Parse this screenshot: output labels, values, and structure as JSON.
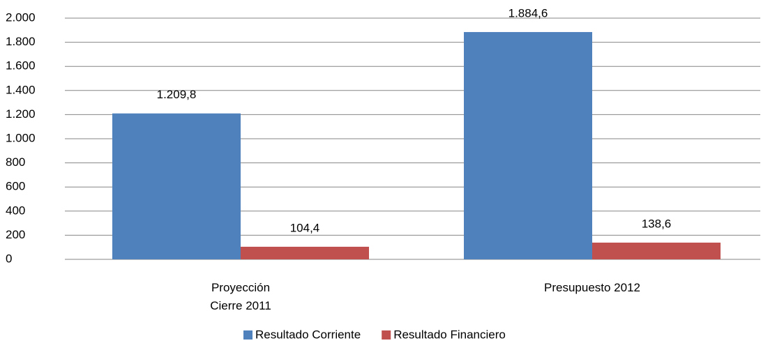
{
  "chart_data": {
    "type": "bar",
    "categories": [
      "Proyección\nCierre 2011",
      "Presupuesto 2012"
    ],
    "series": [
      {
        "name": "Resultado Corriente",
        "color": "#4f81bd",
        "values": [
          1209.8,
          1884.6
        ],
        "value_labels": [
          "1.209,8",
          "1.884,6"
        ]
      },
      {
        "name": "Resultado Financiero",
        "color": "#c0504d",
        "values": [
          104.4,
          138.6
        ],
        "value_labels": [
          "104,4",
          "138,6"
        ]
      }
    ],
    "ylim": [
      0,
      2000
    ],
    "yticks": [
      0,
      200,
      400,
      600,
      800,
      {
        "value": 1000,
        "label": "1.000"
      },
      {
        "value": 1200,
        "label": "1.200"
      },
      {
        "value": 1400,
        "label": "1.400"
      },
      {
        "value": 1600,
        "label": "1.600"
      },
      {
        "value": 1800,
        "label": "1.800"
      },
      {
        "value": 2000,
        "label": "2.000"
      }
    ],
    "grid": true,
    "legend": "bottom"
  }
}
